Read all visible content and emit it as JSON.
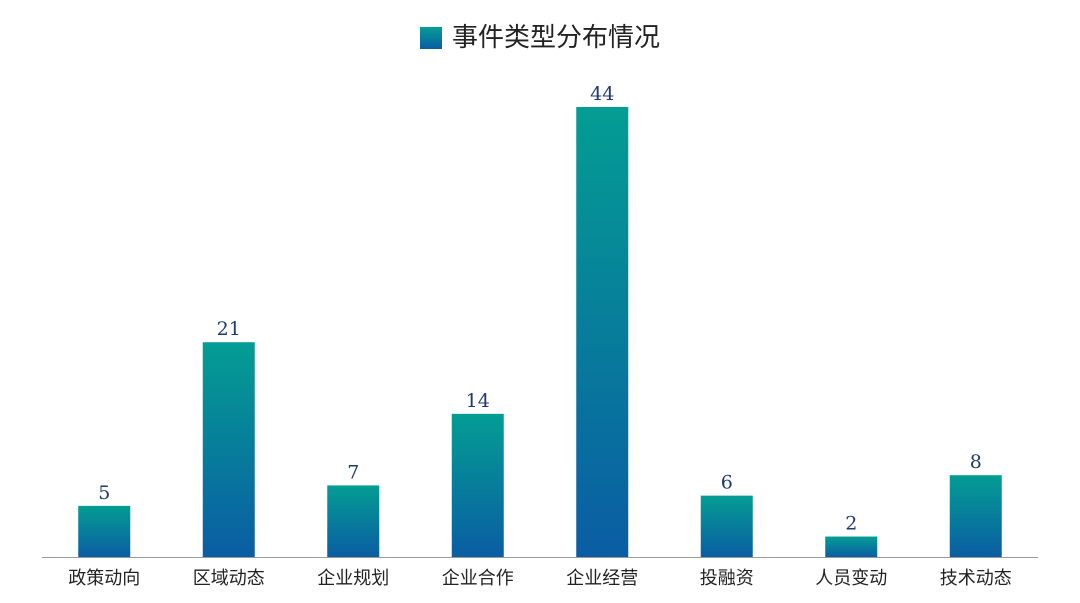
{
  "chart_data": {
    "type": "bar",
    "legend_position": "top-center",
    "grid": false,
    "series": [
      {
        "name": "事件类型分布情况",
        "values": [
          5,
          21,
          7,
          14,
          44,
          6,
          2,
          8
        ]
      }
    ],
    "categories": [
      "政策动向",
      "区域动态",
      "企业规划",
      "企业合作",
      "企业经营",
      "投融资",
      "人员变动",
      "技术动态"
    ],
    "ylim": [
      0,
      44
    ],
    "colors": {
      "bar_top": "#049d93",
      "bar_bottom": "#0a5da3",
      "value_label": "#1d3b6b",
      "axis": "#9a9a9a"
    }
  }
}
